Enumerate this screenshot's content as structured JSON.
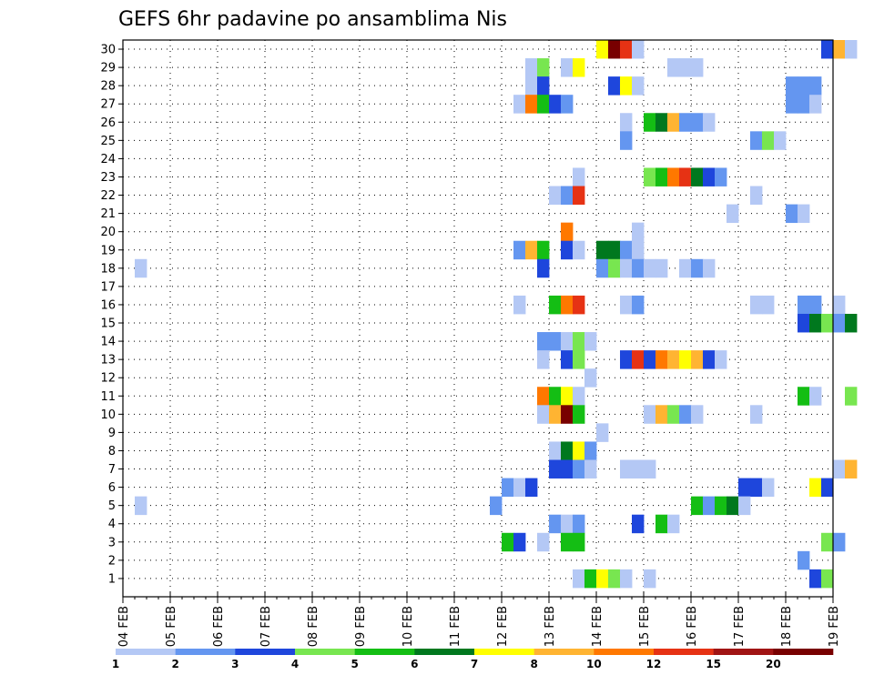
{
  "chart_data": {
    "type": "heatmap",
    "title": "GEFS 6hr padavine po ansamblima Nis",
    "y_categories": [
      "1",
      "2",
      "3",
      "4",
      "5",
      "6",
      "7",
      "8",
      "9",
      "10",
      "11",
      "12",
      "13",
      "14",
      "15",
      "16",
      "17",
      "18",
      "19",
      "20",
      "21",
      "22",
      "23",
      "24",
      "25",
      "26",
      "27",
      "28",
      "29",
      "30"
    ],
    "x_tick_labels": [
      "04 FEB",
      "05 FEB",
      "06 FEB",
      "07 FEB",
      "08 FEB",
      "09 FEB",
      "10 FEB",
      "11 FEB",
      "12 FEB",
      "13 FEB",
      "14 FEB",
      "15 FEB",
      "16 FEB",
      "17 FEB",
      "18 FEB",
      "19 FEB"
    ],
    "steps_per_day": 4,
    "grid": "dotted",
    "colorbar": {
      "tick_labels": [
        "1",
        "2",
        "3",
        "4",
        "5",
        "6",
        "7",
        "8",
        "10",
        "12",
        "15",
        "20"
      ],
      "colors": [
        "#b4c8f5",
        "#6496f0",
        "#1e46dc",
        "#78e650",
        "#14be14",
        "#00781e",
        "#ffff00",
        "#ffb432",
        "#ff7800",
        "#e63214",
        "#a01414",
        "#780000"
      ]
    },
    "cells": [
      {
        "member": 30,
        "step": 40,
        "level": 7
      },
      {
        "member": 30,
        "step": 41,
        "level": 12
      },
      {
        "member": 30,
        "step": 42,
        "level": 10
      },
      {
        "member": 30,
        "step": 43,
        "level": 1
      },
      {
        "member": 30,
        "step": 59,
        "level": 3
      },
      {
        "member": 30,
        "step": 60,
        "level": 8
      },
      {
        "member": 30,
        "step": 61,
        "level": 1
      },
      {
        "member": 29,
        "step": 34,
        "level": 1
      },
      {
        "member": 29,
        "step": 35,
        "level": 4
      },
      {
        "member": 29,
        "step": 37,
        "level": 1
      },
      {
        "member": 29,
        "step": 38,
        "level": 7
      },
      {
        "member": 29,
        "step": 46,
        "level": 1
      },
      {
        "member": 29,
        "step": 47,
        "level": 1
      },
      {
        "member": 29,
        "step": 48,
        "level": 1
      },
      {
        "member": 28,
        "step": 34,
        "level": 1
      },
      {
        "member": 28,
        "step": 35,
        "level": 3
      },
      {
        "member": 28,
        "step": 41,
        "level": 3
      },
      {
        "member": 28,
        "step": 42,
        "level": 7
      },
      {
        "member": 28,
        "step": 43,
        "level": 1
      },
      {
        "member": 28,
        "step": 56,
        "level": 2
      },
      {
        "member": 28,
        "step": 57,
        "level": 2
      },
      {
        "member": 28,
        "step": 58,
        "level": 2
      },
      {
        "member": 27,
        "step": 33,
        "level": 1
      },
      {
        "member": 27,
        "step": 34,
        "level": 9
      },
      {
        "member": 27,
        "step": 35,
        "level": 5
      },
      {
        "member": 27,
        "step": 36,
        "level": 3
      },
      {
        "member": 27,
        "step": 37,
        "level": 2
      },
      {
        "member": 27,
        "step": 56,
        "level": 2
      },
      {
        "member": 27,
        "step": 57,
        "level": 2
      },
      {
        "member": 27,
        "step": 58,
        "level": 1
      },
      {
        "member": 26,
        "step": 42,
        "level": 1
      },
      {
        "member": 26,
        "step": 44,
        "level": 5
      },
      {
        "member": 26,
        "step": 45,
        "level": 6
      },
      {
        "member": 26,
        "step": 46,
        "level": 8
      },
      {
        "member": 26,
        "step": 47,
        "level": 2
      },
      {
        "member": 26,
        "step": 48,
        "level": 2
      },
      {
        "member": 26,
        "step": 49,
        "level": 1
      },
      {
        "member": 25,
        "step": 42,
        "level": 2
      },
      {
        "member": 25,
        "step": 53,
        "level": 2
      },
      {
        "member": 25,
        "step": 54,
        "level": 4
      },
      {
        "member": 25,
        "step": 55,
        "level": 1
      },
      {
        "member": 23,
        "step": 38,
        "level": 1
      },
      {
        "member": 23,
        "step": 44,
        "level": 4
      },
      {
        "member": 23,
        "step": 45,
        "level": 5
      },
      {
        "member": 23,
        "step": 46,
        "level": 9
      },
      {
        "member": 23,
        "step": 47,
        "level": 10
      },
      {
        "member": 23,
        "step": 48,
        "level": 6
      },
      {
        "member": 23,
        "step": 49,
        "level": 3
      },
      {
        "member": 23,
        "step": 50,
        "level": 2
      },
      {
        "member": 22,
        "step": 36,
        "level": 1
      },
      {
        "member": 22,
        "step": 37,
        "level": 2
      },
      {
        "member": 22,
        "step": 38,
        "level": 10
      },
      {
        "member": 22,
        "step": 53,
        "level": 1
      },
      {
        "member": 21,
        "step": 51,
        "level": 1
      },
      {
        "member": 21,
        "step": 56,
        "level": 2
      },
      {
        "member": 21,
        "step": 57,
        "level": 1
      },
      {
        "member": 20,
        "step": 37,
        "level": 9
      },
      {
        "member": 20,
        "step": 43,
        "level": 1
      },
      {
        "member": 19,
        "step": 33,
        "level": 2
      },
      {
        "member": 19,
        "step": 34,
        "level": 8
      },
      {
        "member": 19,
        "step": 35,
        "level": 5
      },
      {
        "member": 19,
        "step": 37,
        "level": 3
      },
      {
        "member": 19,
        "step": 38,
        "level": 1
      },
      {
        "member": 19,
        "step": 40,
        "level": 6
      },
      {
        "member": 19,
        "step": 41,
        "level": 6
      },
      {
        "member": 19,
        "step": 42,
        "level": 2
      },
      {
        "member": 19,
        "step": 43,
        "level": 1
      },
      {
        "member": 18,
        "step": 1,
        "level": 1
      },
      {
        "member": 18,
        "step": 35,
        "level": 3
      },
      {
        "member": 18,
        "step": 40,
        "level": 2
      },
      {
        "member": 18,
        "step": 41,
        "level": 4
      },
      {
        "member": 18,
        "step": 42,
        "level": 1
      },
      {
        "member": 18,
        "step": 43,
        "level": 2
      },
      {
        "member": 18,
        "step": 44,
        "level": 1
      },
      {
        "member": 18,
        "step": 45,
        "level": 1
      },
      {
        "member": 18,
        "step": 47,
        "level": 1
      },
      {
        "member": 18,
        "step": 48,
        "level": 2
      },
      {
        "member": 18,
        "step": 49,
        "level": 1
      },
      {
        "member": 16,
        "step": 33,
        "level": 1
      },
      {
        "member": 16,
        "step": 36,
        "level": 5
      },
      {
        "member": 16,
        "step": 37,
        "level": 9
      },
      {
        "member": 16,
        "step": 38,
        "level": 10
      },
      {
        "member": 16,
        "step": 42,
        "level": 1
      },
      {
        "member": 16,
        "step": 43,
        "level": 2
      },
      {
        "member": 16,
        "step": 53,
        "level": 1
      },
      {
        "member": 16,
        "step": 54,
        "level": 1
      },
      {
        "member": 16,
        "step": 57,
        "level": 2
      },
      {
        "member": 16,
        "step": 58,
        "level": 2
      },
      {
        "member": 16,
        "step": 60,
        "level": 1
      },
      {
        "member": 15,
        "step": 57,
        "level": 3
      },
      {
        "member": 15,
        "step": 58,
        "level": 6
      },
      {
        "member": 15,
        "step": 59,
        "level": 4
      },
      {
        "member": 15,
        "step": 60,
        "level": 2
      },
      {
        "member": 15,
        "step": 61,
        "level": 6
      },
      {
        "member": 14,
        "step": 35,
        "level": 2
      },
      {
        "member": 14,
        "step": 36,
        "level": 2
      },
      {
        "member": 14,
        "step": 37,
        "level": 1
      },
      {
        "member": 14,
        "step": 38,
        "level": 4
      },
      {
        "member": 14,
        "step": 39,
        "level": 1
      },
      {
        "member": 13,
        "step": 35,
        "level": 1
      },
      {
        "member": 13,
        "step": 37,
        "level": 3
      },
      {
        "member": 13,
        "step": 38,
        "level": 4
      },
      {
        "member": 13,
        "step": 42,
        "level": 3
      },
      {
        "member": 13,
        "step": 43,
        "level": 10
      },
      {
        "member": 13,
        "step": 44,
        "level": 3
      },
      {
        "member": 13,
        "step": 45,
        "level": 9
      },
      {
        "member": 13,
        "step": 46,
        "level": 8
      },
      {
        "member": 13,
        "step": 47,
        "level": 7
      },
      {
        "member": 13,
        "step": 48,
        "level": 8
      },
      {
        "member": 13,
        "step": 49,
        "level": 3
      },
      {
        "member": 13,
        "step": 50,
        "level": 1
      },
      {
        "member": 12,
        "step": 39,
        "level": 1
      },
      {
        "member": 11,
        "step": 35,
        "level": 9
      },
      {
        "member": 11,
        "step": 36,
        "level": 5
      },
      {
        "member": 11,
        "step": 37,
        "level": 7
      },
      {
        "member": 11,
        "step": 38,
        "level": 1
      },
      {
        "member": 11,
        "step": 57,
        "level": 5
      },
      {
        "member": 11,
        "step": 58,
        "level": 1
      },
      {
        "member": 11,
        "step": 61,
        "level": 4
      },
      {
        "member": 10,
        "step": 35,
        "level": 1
      },
      {
        "member": 10,
        "step": 36,
        "level": 8
      },
      {
        "member": 10,
        "step": 37,
        "level": 12
      },
      {
        "member": 10,
        "step": 38,
        "level": 5
      },
      {
        "member": 10,
        "step": 44,
        "level": 1
      },
      {
        "member": 10,
        "step": 45,
        "level": 8
      },
      {
        "member": 10,
        "step": 46,
        "level": 4
      },
      {
        "member": 10,
        "step": 47,
        "level": 2
      },
      {
        "member": 10,
        "step": 48,
        "level": 1
      },
      {
        "member": 10,
        "step": 53,
        "level": 1
      },
      {
        "member": 9,
        "step": 40,
        "level": 1
      },
      {
        "member": 8,
        "step": 36,
        "level": 1
      },
      {
        "member": 8,
        "step": 37,
        "level": 6
      },
      {
        "member": 8,
        "step": 38,
        "level": 7
      },
      {
        "member": 8,
        "step": 39,
        "level": 2
      },
      {
        "member": 7,
        "step": 36,
        "level": 3
      },
      {
        "member": 7,
        "step": 37,
        "level": 3
      },
      {
        "member": 7,
        "step": 38,
        "level": 2
      },
      {
        "member": 7,
        "step": 39,
        "level": 1
      },
      {
        "member": 7,
        "step": 42,
        "level": 1
      },
      {
        "member": 7,
        "step": 43,
        "level": 1
      },
      {
        "member": 7,
        "step": 44,
        "level": 1
      },
      {
        "member": 7,
        "step": 60,
        "level": 1
      },
      {
        "member": 7,
        "step": 61,
        "level": 8
      },
      {
        "member": 6,
        "step": 32,
        "level": 2
      },
      {
        "member": 6,
        "step": 33,
        "level": 1
      },
      {
        "member": 6,
        "step": 34,
        "level": 3
      },
      {
        "member": 6,
        "step": 52,
        "level": 3
      },
      {
        "member": 6,
        "step": 53,
        "level": 3
      },
      {
        "member": 6,
        "step": 54,
        "level": 1
      },
      {
        "member": 6,
        "step": 58,
        "level": 7
      },
      {
        "member": 6,
        "step": 59,
        "level": 3
      },
      {
        "member": 5,
        "step": 1,
        "level": 1
      },
      {
        "member": 5,
        "step": 31,
        "level": 2
      },
      {
        "member": 5,
        "step": 48,
        "level": 5
      },
      {
        "member": 5,
        "step": 49,
        "level": 2
      },
      {
        "member": 5,
        "step": 50,
        "level": 5
      },
      {
        "member": 5,
        "step": 51,
        "level": 6
      },
      {
        "member": 5,
        "step": 52,
        "level": 1
      },
      {
        "member": 4,
        "step": 36,
        "level": 2
      },
      {
        "member": 4,
        "step": 37,
        "level": 1
      },
      {
        "member": 4,
        "step": 38,
        "level": 2
      },
      {
        "member": 4,
        "step": 43,
        "level": 3
      },
      {
        "member": 4,
        "step": 45,
        "level": 5
      },
      {
        "member": 4,
        "step": 46,
        "level": 1
      },
      {
        "member": 3,
        "step": 32,
        "level": 5
      },
      {
        "member": 3,
        "step": 33,
        "level": 3
      },
      {
        "member": 3,
        "step": 35,
        "level": 1
      },
      {
        "member": 3,
        "step": 37,
        "level": 5
      },
      {
        "member": 3,
        "step": 38,
        "level": 5
      },
      {
        "member": 3,
        "step": 59,
        "level": 4
      },
      {
        "member": 3,
        "step": 60,
        "level": 2
      },
      {
        "member": 2,
        "step": 57,
        "level": 2
      },
      {
        "member": 1,
        "step": 38,
        "level": 1
      },
      {
        "member": 1,
        "step": 39,
        "level": 5
      },
      {
        "member": 1,
        "step": 40,
        "level": 7
      },
      {
        "member": 1,
        "step": 41,
        "level": 4
      },
      {
        "member": 1,
        "step": 42,
        "level": 1
      },
      {
        "member": 1,
        "step": 44,
        "level": 1
      },
      {
        "member": 1,
        "step": 58,
        "level": 3
      },
      {
        "member": 1,
        "step": 59,
        "level": 4
      }
    ]
  }
}
